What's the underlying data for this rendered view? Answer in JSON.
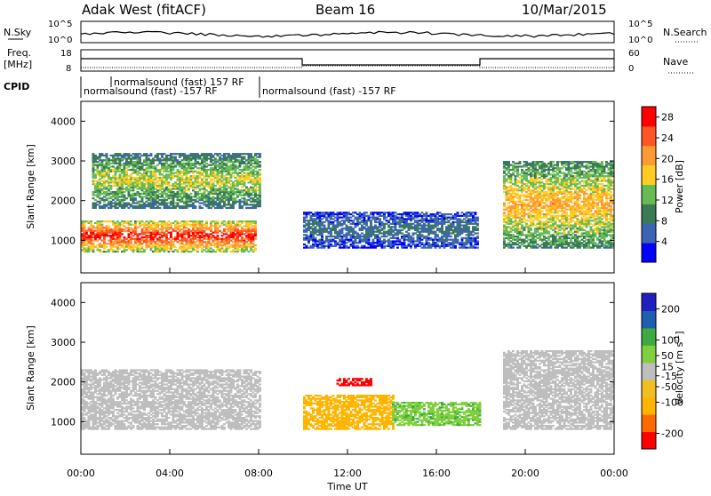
{
  "header": {
    "station": "Adak West (fitACF)",
    "beam": "Beam 16",
    "date": "10/Mar/2015"
  },
  "top_panel": {
    "left_label": "N.Sky",
    "right_label": "N.Search",
    "left_ticks": [
      "10^5",
      "10^0"
    ],
    "right_ticks": [
      "10^5",
      "10^0"
    ]
  },
  "freq_panel": {
    "left_label_line1": "Freq.",
    "left_label_line2": "[MHz]",
    "left_ticks": [
      "18",
      "8"
    ],
    "right_label": "Nave",
    "right_ticks": [
      "60",
      "0"
    ]
  },
  "cpid": {
    "label": "CPID",
    "program_a": "normalsound (fast) 157 RF",
    "program_b": "normalsound (fast) -157 RF",
    "program_c": "normalsound (fast) -157 RF"
  },
  "chart_data": [
    {
      "type": "heatmap",
      "title": "",
      "xlabel": "Time UT",
      "ylabel": "Slant Range [km]",
      "x_ticks": [
        "00:00",
        "04:00",
        "08:00",
        "12:00",
        "16:00",
        "20:00",
        "00:00"
      ],
      "y_ticks": [
        1000,
        2000,
        3000,
        4000
      ],
      "ylim": [
        180,
        4500
      ],
      "colorbar": {
        "label": "Power [dB]",
        "ticks": [
          4,
          8,
          12,
          16,
          20,
          24,
          28
        ],
        "range": [
          0,
          30
        ]
      },
      "regions": [
        {
          "hours": [
            0,
            7.8
          ],
          "range_km": [
            700,
            1500
          ],
          "level_db": 28
        },
        {
          "hours": [
            0.5,
            8.0
          ],
          "range_km": [
            1800,
            3200
          ],
          "level_db": 16
        },
        {
          "hours": [
            10.0,
            17.9
          ],
          "range_km": [
            800,
            1700
          ],
          "level_db": 8
        },
        {
          "hours": [
            19.0,
            24.0
          ],
          "range_km": [
            800,
            3000
          ],
          "level_db": 20
        }
      ]
    },
    {
      "type": "heatmap",
      "title": "",
      "xlabel": "Time UT",
      "ylabel": "Slant Range [km]",
      "x_ticks": [
        "00:00",
        "04:00",
        "08:00",
        "12:00",
        "16:00",
        "20:00",
        "00:00"
      ],
      "y_ticks": [
        1000,
        2000,
        3000,
        4000
      ],
      "ylim": [
        180,
        4500
      ],
      "colorbar": {
        "label_main": "Velocity [m s",
        "label_sup": "-1",
        "label_end": "]",
        "ticks": [
          200,
          100,
          50,
          15,
          -15,
          -50,
          -100,
          -200
        ],
        "range": [
          -250,
          250
        ]
      },
      "regions": [
        {
          "hours": [
            0,
            8.0
          ],
          "range_km": [
            800,
            2300
          ],
          "velocity": 0
        },
        {
          "hours": [
            10.0,
            14.0
          ],
          "range_km": [
            800,
            1650
          ],
          "velocity": -70
        },
        {
          "hours": [
            14.0,
            18.0
          ],
          "range_km": [
            900,
            1500
          ],
          "velocity": 40
        },
        {
          "hours": [
            11.5,
            13.0
          ],
          "range_km": [
            1900,
            2100
          ],
          "velocity": -230
        },
        {
          "hours": [
            19.0,
            24.0
          ],
          "range_km": [
            800,
            2800
          ],
          "velocity": 0
        }
      ]
    }
  ],
  "colors": {
    "power_scale": [
      "#0000ff",
      "#3c64b4",
      "#3a7a55",
      "#66bb55",
      "#ffcc22",
      "#ff9933",
      "#ff5522",
      "#ff0000"
    ],
    "velocity_scale": [
      "#ff0000",
      "#ff6a00",
      "#ffb400",
      "#f0c020",
      "#bebebe",
      "#7fcf3f",
      "#3faa3f",
      "#1f5fb0",
      "#2020c0"
    ]
  }
}
